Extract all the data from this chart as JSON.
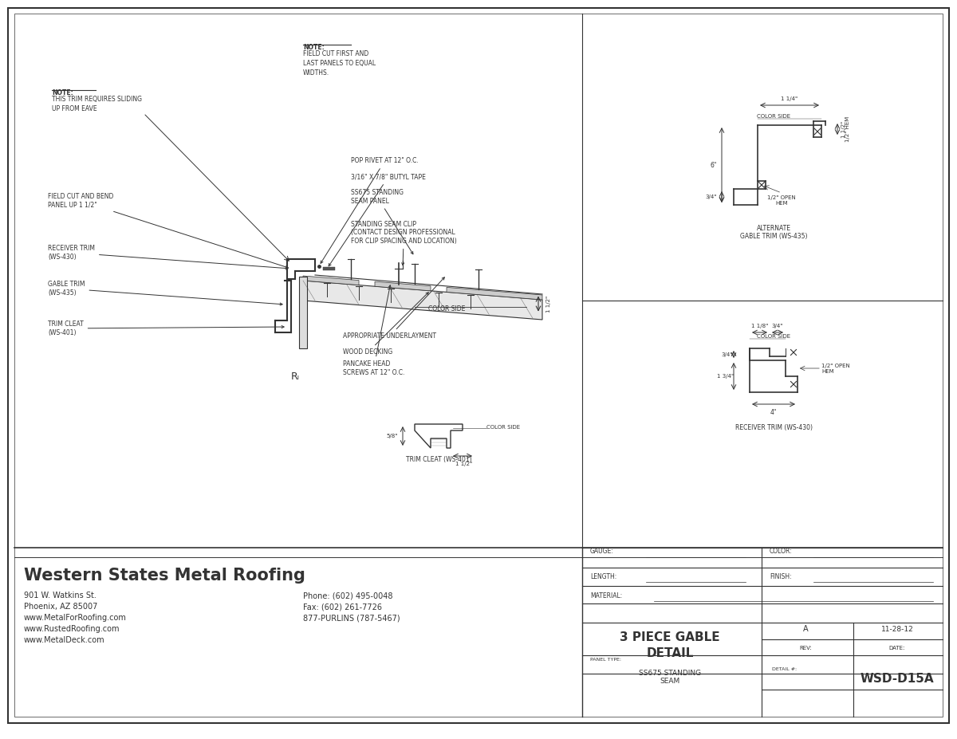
{
  "bg_color": "#ffffff",
  "line_color": "#333333",
  "company_name": "Western States Metal Roofing",
  "address_line1": "901 W. Watkins St.",
  "address_line2": "Phoenix, AZ 85007",
  "address_line3": "www.MetalForRoofing.com",
  "address_line4": "www.RustedRoofing.com",
  "address_line5": "www.MetalDeck.com",
  "phone_line1": "Phone: (602) 495-0048",
  "phone_line2": "Fax: (602) 261-7726",
  "phone_line3": "877-PURLINS (787-5467)",
  "note1_title": "NOTE:",
  "note1_body": "FIELD CUT FIRST AND\nLAST PANELS TO EQUAL\nWIDTHS.",
  "note2_title": "NOTE:",
  "note2_body": "THIS TRIM REQUIRES SLIDING\nUP FROM EAVE",
  "labels": {
    "pop_rivet": "POP RIVET AT 12\" O.C.",
    "butyl_tape": "3/16\" X 7/8\" BUTYL TAPE",
    "ss675_panel": "SS675 STANDING\nSEAM PANEL",
    "standing_seam_clip": "STANDING SEAM CLIP\n(CONTACT DESIGN PROFESSIONAL\nFOR CLIP SPACING AND LOCATION)",
    "receiver_trim": "RECEIVER TRIM\n(WS-430)",
    "gable_trim": "GABLE TRIM\n(WS-435)",
    "trim_cleat": "TRIM CLEAT\n(WS-401)",
    "field_cut": "FIELD CUT AND BEND\nPANEL UP 1 1/2\"",
    "underlayment": "APPROPRIATE UNDERLAYMENT",
    "wood_decking": "WOOD DECKING",
    "pancake_head": "PANCAKE HEAD\nSCREWS AT 12\" O.C.",
    "trim_cleat_detail": "TRIM CLEAT (WS-401)",
    "color_side": "COLOR SIDE",
    "alt_gable_title": "ALTERNATE\nGABLE TRIM (WS-435)",
    "receiver_trim_detail": "RECEIVER TRIM (WS-430)"
  }
}
